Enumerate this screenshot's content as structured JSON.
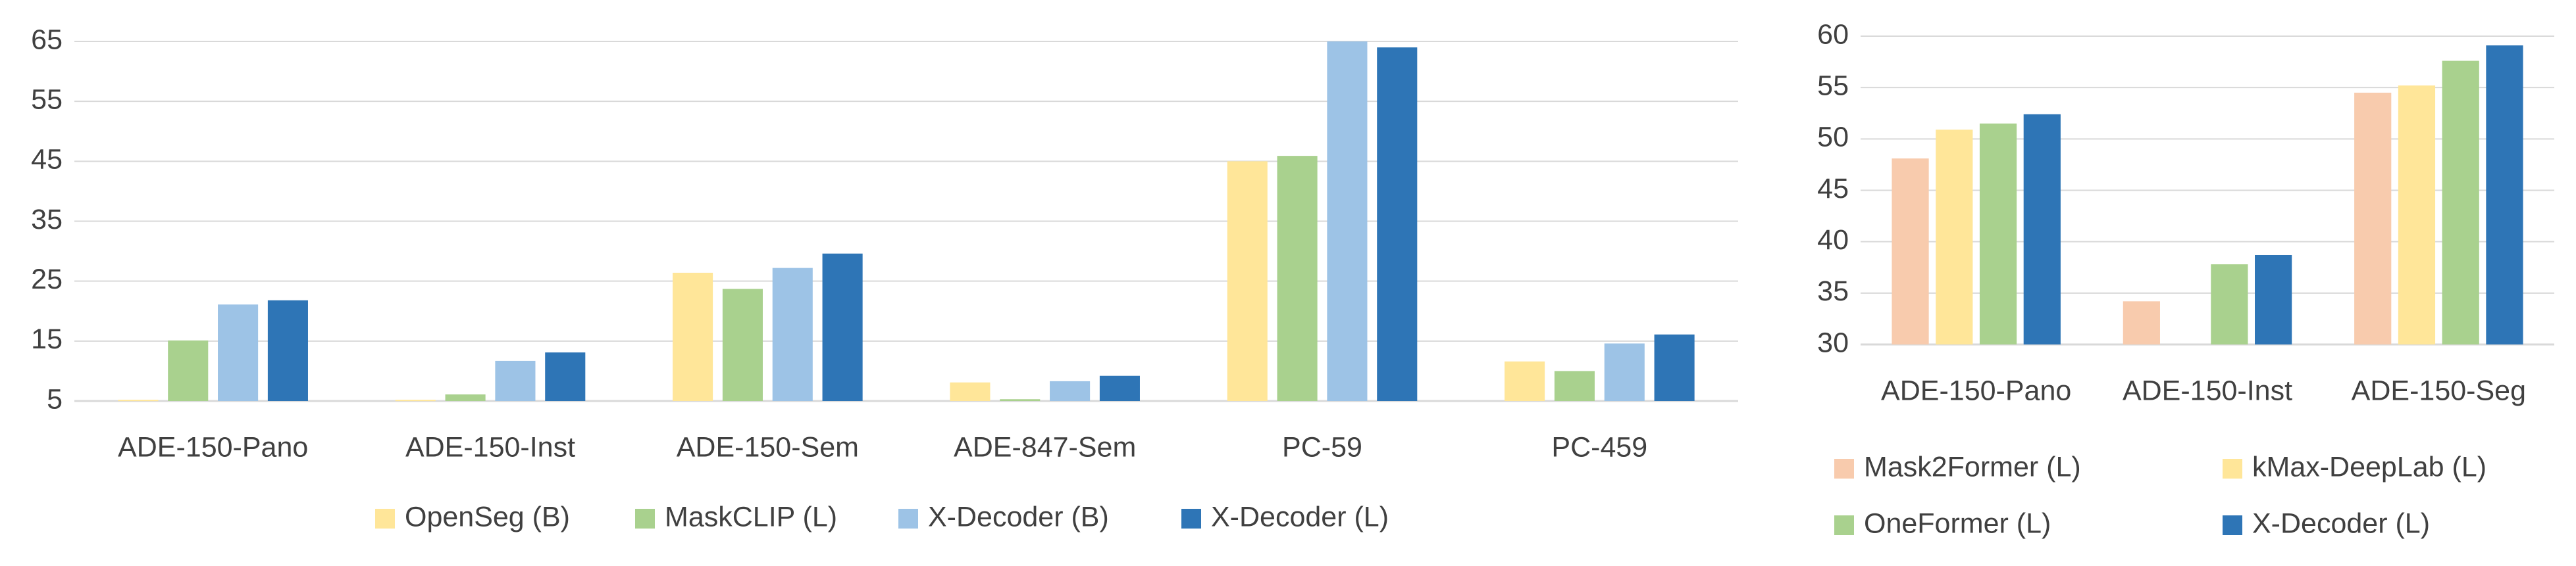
{
  "chart_data": [
    {
      "type": "bar",
      "categories": [
        "ADE-150-Pano",
        "ADE-150-Inst",
        "ADE-150-Sem",
        "ADE-847-Sem",
        "PC-59",
        "PC-459"
      ],
      "series": [
        {
          "name": "OpenSeg (B)",
          "color": "#ffe699",
          "values": [
            5.2,
            5.2,
            26.4,
            8.1,
            45.0,
            11.6
          ]
        },
        {
          "name": "MaskCLIP (L)",
          "color": "#a9d18e",
          "values": [
            15.1,
            6.1,
            23.7,
            5.3,
            45.9,
            10.0
          ]
        },
        {
          "name": "X-Decoder (B)",
          "color": "#9dc3e6",
          "values": [
            21.1,
            11.7,
            27.2,
            8.3,
            65.0,
            14.6
          ]
        },
        {
          "name": "X-Decoder (L)",
          "color": "#2e75b6",
          "values": [
            21.8,
            13.1,
            29.6,
            9.2,
            64.0,
            16.1
          ]
        }
      ],
      "ylim": [
        5,
        65
      ],
      "yticks": [
        5,
        15,
        25,
        35,
        45,
        55,
        65
      ],
      "grid": true,
      "legend": "bottom"
    },
    {
      "type": "bar",
      "categories": [
        "ADE-150-Pano",
        "ADE-150-Inst",
        "ADE-150-Seg"
      ],
      "series": [
        {
          "name": "Mask2Former (L)",
          "color": "#f8cbad",
          "values": [
            48.1,
            34.2,
            54.5
          ]
        },
        {
          "name": "kMax-DeepLab (L)",
          "color": "#ffe699",
          "values": [
            50.9,
            null,
            55.2
          ]
        },
        {
          "name": "OneFormer (L)",
          "color": "#a9d18e",
          "values": [
            51.5,
            37.8,
            57.6
          ]
        },
        {
          "name": "X-Decoder (L)",
          "color": "#2e75b6",
          "values": [
            52.4,
            38.7,
            59.1
          ]
        }
      ],
      "ylim": [
        30,
        60
      ],
      "yticks": [
        30,
        35,
        40,
        45,
        50,
        55,
        60
      ],
      "grid": true,
      "legend": "bottom"
    }
  ]
}
